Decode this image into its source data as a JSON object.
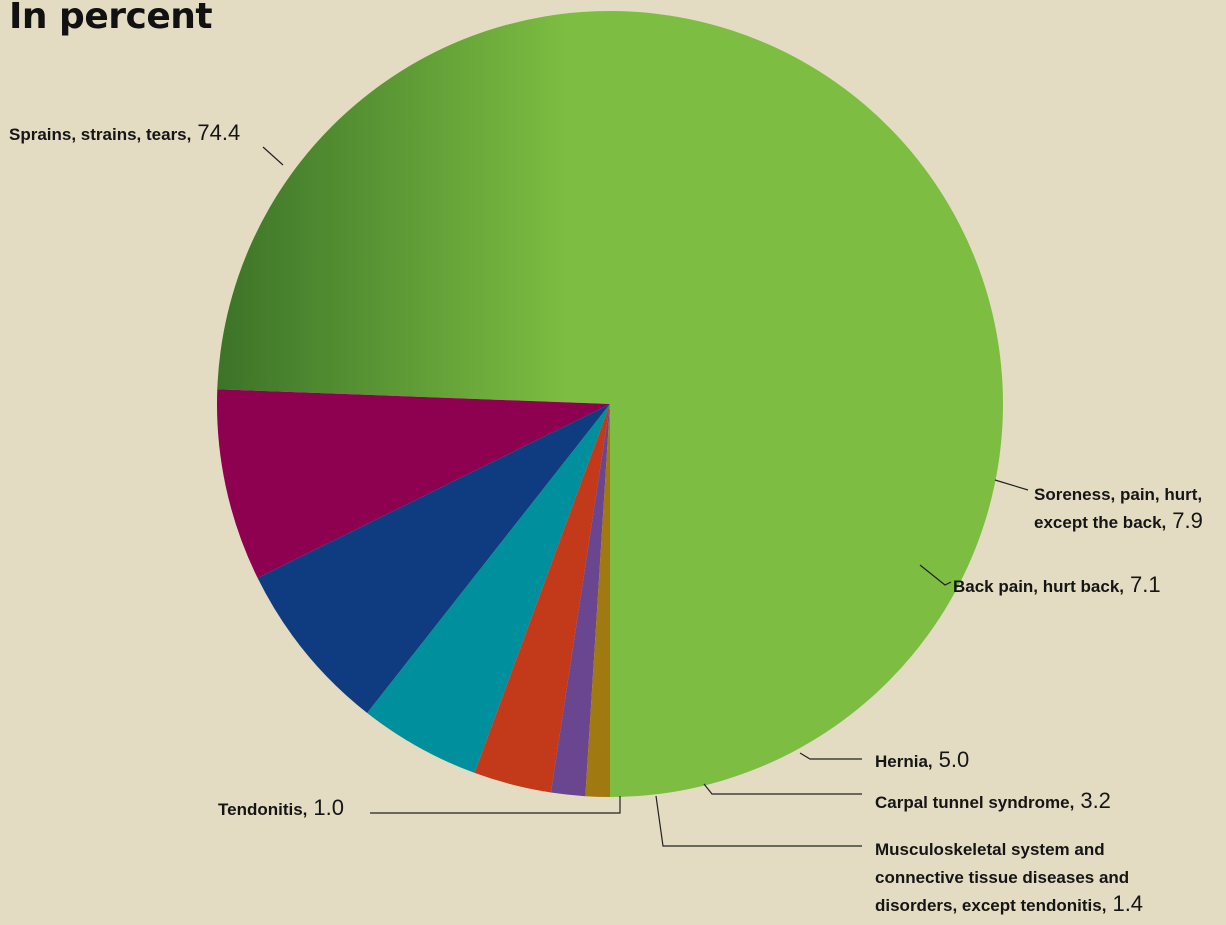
{
  "chart_data": {
    "type": "pie",
    "title": "In percent",
    "slices": [
      {
        "label": "Sprains, strains, tears,",
        "value": 74.4,
        "value_text": "74.4",
        "color": "#7dbe42",
        "color_dark": "#3c7328"
      },
      {
        "label": "Soreness, pain, hurt, except the back,",
        "value": 7.9,
        "value_text": "7.9",
        "color": "#ec008c",
        "color_dark": "#8e0050"
      },
      {
        "label": "Back pain, hurt back,",
        "value": 7.1,
        "value_text": "7.1",
        "color": "#0054a6",
        "color_dark": "#0f3c80"
      },
      {
        "label": "Hernia,",
        "value": 5.0,
        "value_text": "5.0",
        "color": "#00b5c2",
        "color_dark": "#008f9c"
      },
      {
        "label": "Carpal tunnel syndrome,",
        "value": 3.2,
        "value_text": "3.2",
        "color": "#ef4f23",
        "color_dark": "#c23a1a"
      },
      {
        "label": "Musculoskeletal system and connective tissue diseases and disorders, except tendonitis,",
        "value": 1.4,
        "value_text": "1.4",
        "color": "#7f56a6",
        "color_dark": "#6a4590"
      },
      {
        "label": "Tendonitis,",
        "value": 1.0,
        "value_text": "1.0",
        "color": "#ffc20e",
        "color_dark": "#a07a10"
      }
    ]
  }
}
